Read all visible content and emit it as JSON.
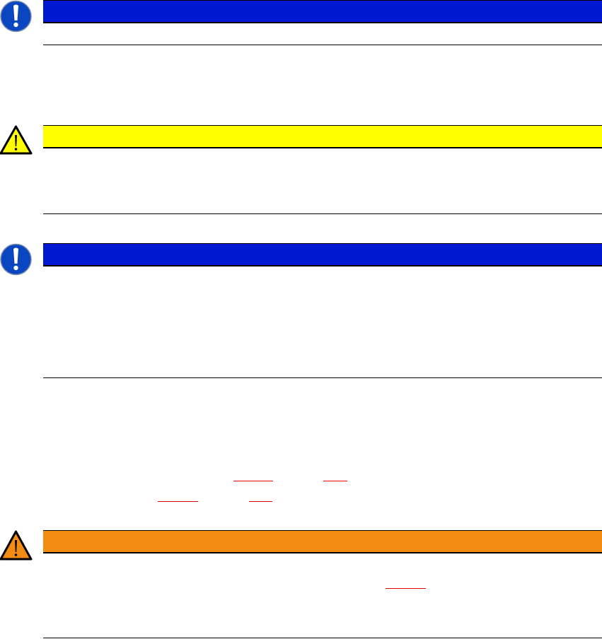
{
  "colors": {
    "notice_blue": "#0018d0",
    "caution_yellow": "#ffff00",
    "warning_orange": "#f48c14",
    "link_red": "#e00000"
  },
  "notices": [
    {
      "type": "notice",
      "icon": "exclamation-circle-icon"
    },
    {
      "type": "caution",
      "icon": "warning-triangle-icon"
    },
    {
      "type": "notice",
      "icon": "exclamation-circle-icon"
    },
    {
      "type": "warning",
      "icon": "warning-triangle-icon"
    }
  ]
}
